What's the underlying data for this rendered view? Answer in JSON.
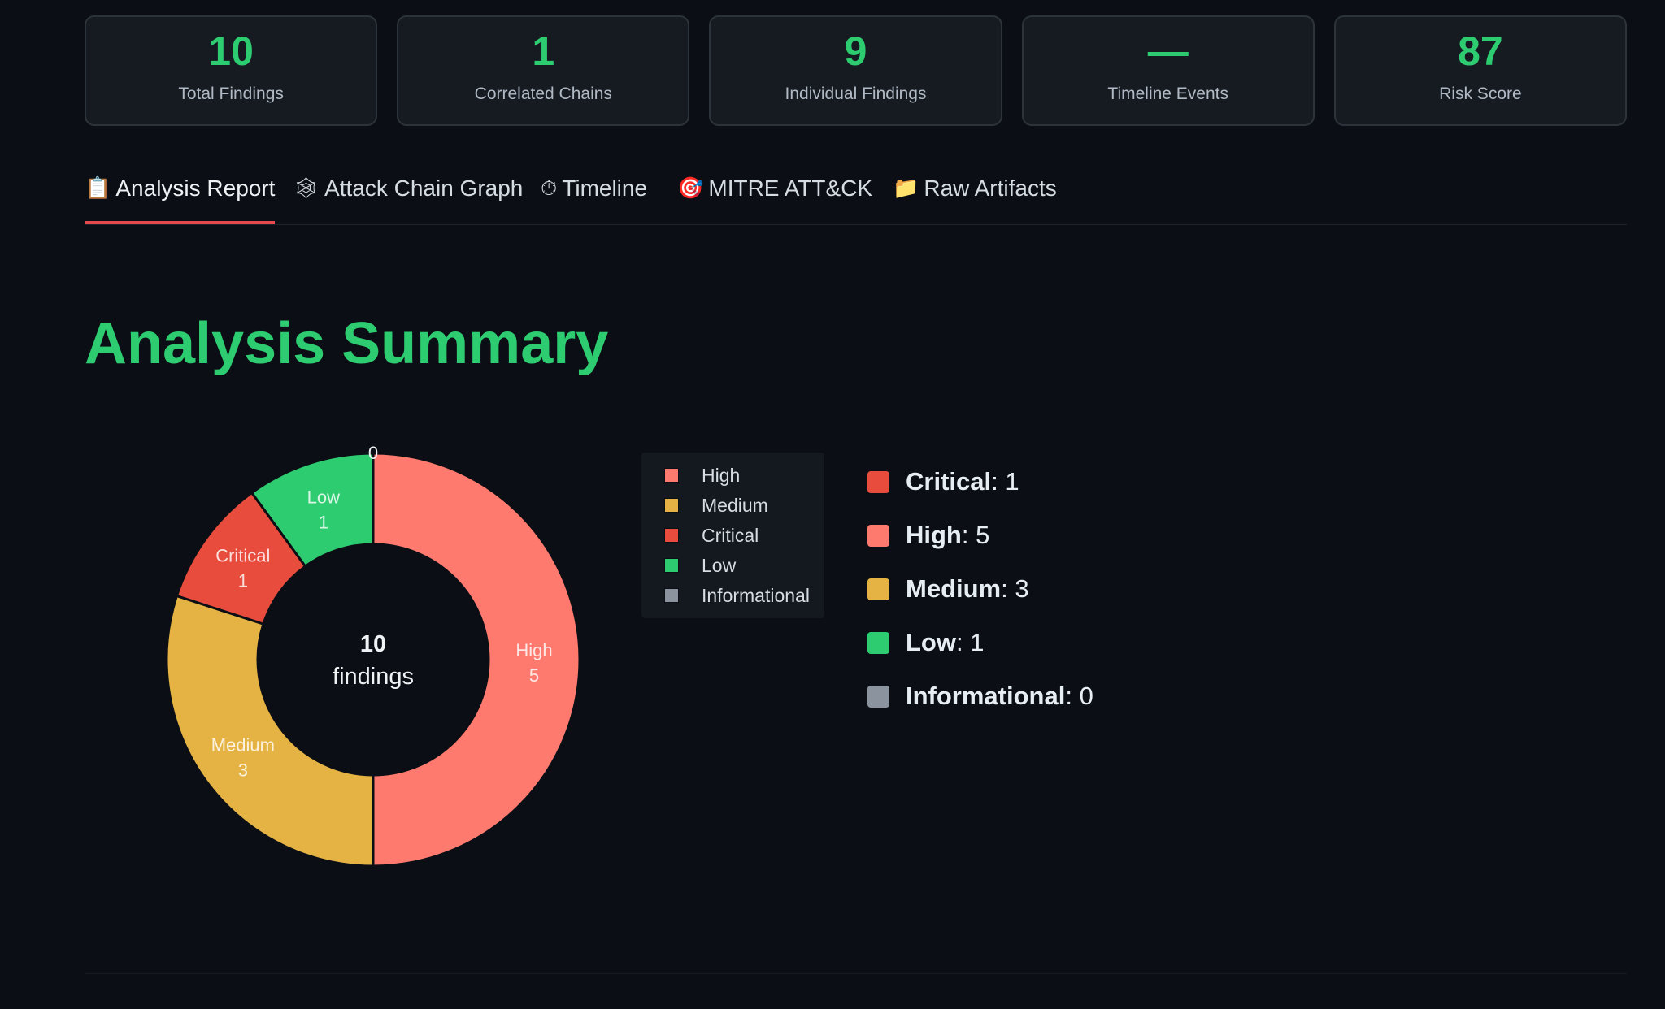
{
  "stats": [
    {
      "value": "10",
      "label": "Total Findings"
    },
    {
      "value": "1",
      "label": "Correlated Chains"
    },
    {
      "value": "9",
      "label": "Individual Findings"
    },
    {
      "value": "—",
      "label": "Timeline Events"
    },
    {
      "value": "87",
      "label": "Risk Score"
    }
  ],
  "tabs": [
    {
      "label": "Analysis Report",
      "icon": "clipboard-icon",
      "glyph": "📋",
      "active": true
    },
    {
      "label": "Attack Chain Graph",
      "icon": "spider-web-icon",
      "glyph": "🕸",
      "active": false
    },
    {
      "label": "Timeline",
      "icon": "stopwatch-icon",
      "glyph": "⏱",
      "active": false
    },
    {
      "label": "MITRE ATT&CK",
      "icon": "target-icon",
      "glyph": "🎯",
      "active": false
    },
    {
      "label": "Raw Artifacts",
      "icon": "folder-icon",
      "glyph": "📁",
      "active": false
    }
  ],
  "title": "Analysis Summary",
  "chart_data": {
    "type": "pie",
    "variant": "donut",
    "center_value": "10",
    "center_label": "findings",
    "categories": [
      "High",
      "Medium",
      "Critical",
      "Low",
      "Informational"
    ],
    "values": [
      5,
      3,
      1,
      1,
      0
    ],
    "colors": [
      "#ff7a6e",
      "#e5b344",
      "#e74c3c",
      "#2ecc71",
      "#8b949e"
    ],
    "legend_position": "right"
  },
  "severity_list": [
    {
      "name": "Critical",
      "count": ": 1",
      "color": "#e74c3c"
    },
    {
      "name": "High",
      "count": ": 5",
      "color": "#ff7a6e"
    },
    {
      "name": "Medium",
      "count": ": 3",
      "color": "#e5b344"
    },
    {
      "name": "Low",
      "count": ": 1",
      "color": "#2ecc71"
    },
    {
      "name": "Informational",
      "count": ": 0",
      "color": "#8b949e"
    }
  ]
}
